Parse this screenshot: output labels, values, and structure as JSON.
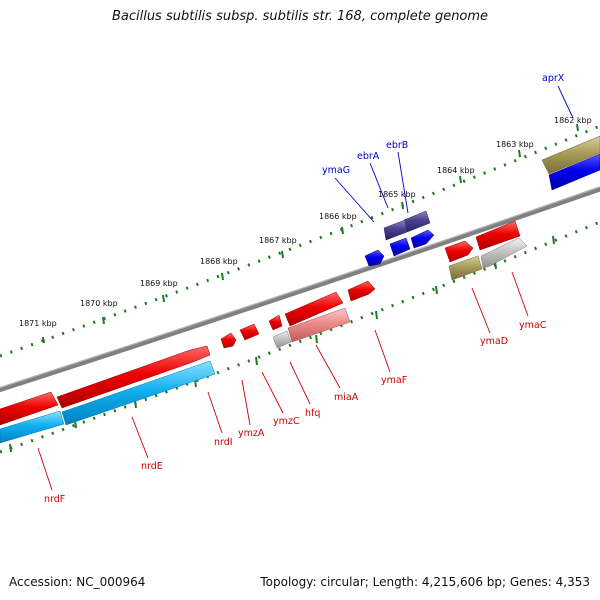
{
  "title": "Bacillus subtilis subsp. subtilis str. 168, complete genome",
  "footer": {
    "accession": "Accession: NC_000964",
    "topology": "Topology: circular; Length: 4,215,606 bp; Genes: 4,353"
  },
  "colors": {
    "backbone": "#808080",
    "tick": "#228b22",
    "red_feature": "#e00000",
    "blue_feature": "#0000e0",
    "dark_blue_feature": "#4a4090",
    "cyan_feature": "#00a8e8",
    "olive_feature": "#a09850",
    "gray_feature": "#b8b8b8",
    "pink_feature": "#e88080",
    "red_label": "#cc0000",
    "blue_label": "#0000cc"
  },
  "kbp_labels": [
    "1862 kbp",
    "1863 kbp",
    "1864 kbp",
    "1865 kbp",
    "1866 kbp",
    "1867 kbp",
    "1868 kbp",
    "1869 kbp",
    "1870 kbp",
    "1871 kbp"
  ],
  "genes_above": [
    "aprX",
    "ebrB",
    "ebrA",
    "ymaG"
  ],
  "genes_below": [
    "ymaC",
    "ymaD",
    "ymaF",
    "miaA",
    "hfq",
    "ymzC",
    "ymzA",
    "nrdI",
    "nrdE",
    "nrdF"
  ]
}
